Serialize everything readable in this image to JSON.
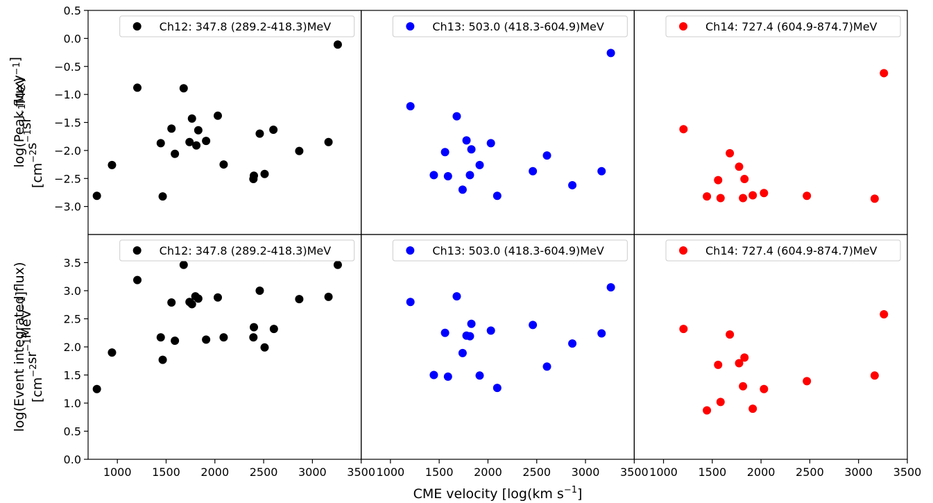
{
  "figure": {
    "xlabel": "CME velocity [log(km s",
    "xlabel_sup": "−1",
    "xlabel_end": "]",
    "ylabels": [
      {
        "line1": "log(Peak flux)",
        "line2": [
          {
            "t": "[cm"
          },
          {
            "t": "−2",
            "sup": true
          },
          {
            "t": "s"
          },
          {
            "t": "−1",
            "sup": true
          },
          {
            "t": "sr"
          },
          {
            "t": "−1",
            "sup": true
          },
          {
            "t": "MeV"
          },
          {
            "t": "−1",
            "sup": true
          },
          {
            "t": "]"
          }
        ]
      },
      {
        "line1": "log(Event integrated flux)",
        "line2": [
          {
            "t": "[cm"
          },
          {
            "t": "−2",
            "sup": true
          },
          {
            "t": "sr"
          },
          {
            "t": "−1",
            "sup": true
          },
          {
            "t": "MeV"
          },
          {
            "t": "−1",
            "sup": true
          },
          {
            "t": "]"
          }
        ]
      }
    ]
  },
  "chart_data": {
    "type": "scatter",
    "grid": false,
    "legend_placement": "top-right",
    "x_range": [
      700,
      3500
    ],
    "x_ticks": [
      1000,
      1500,
      2000,
      2500,
      3000,
      3500
    ],
    "x_tick_labels": [
      "1000",
      "1500",
      "2000",
      "2500",
      "3000",
      "3500"
    ],
    "channels": [
      {
        "name": "Ch12: 347.8 (289.2-418.3)MeV",
        "color": "#000000"
      },
      {
        "name": "Ch13: 503.0 (418.3-604.9)MeV",
        "color": "#0000ff"
      },
      {
        "name": "Ch14: 727.4 (604.9-874.7)MeV",
        "color": "#ff0000"
      }
    ],
    "rows": [
      {
        "metric": "peak_flux",
        "y_range": [
          -3.5,
          0.5
        ],
        "y_ticks": [
          0.5,
          0.0,
          -0.5,
          -1.0,
          -1.5,
          -2.0,
          -2.5,
          -3.0
        ],
        "y_tick_labels": [
          "0.5",
          "0.0",
          "−0.5",
          "−1.0",
          "−1.5",
          "−2.0",
          "−2.5",
          "−3.0"
        ],
        "series": [
          {
            "channel": 0,
            "x": [
              790,
              945,
              1205,
              1445,
              1465,
              1555,
              1590,
              1680,
              1740,
              1765,
              1810,
              1830,
              1910,
              2030,
              2090,
              2395,
              2400,
              2460,
              2510,
              2600,
              2865,
              3165,
              3260
            ],
            "y": [
              -2.81,
              -2.26,
              -0.88,
              -1.87,
              -2.82,
              -1.61,
              -2.06,
              -0.89,
              -1.85,
              -1.43,
              -1.91,
              -1.64,
              -1.83,
              -1.38,
              -2.25,
              -2.51,
              -2.45,
              -1.7,
              -2.42,
              -1.63,
              -2.01,
              -1.85,
              -0.11
            ]
          },
          {
            "channel": 1,
            "x": [
              1205,
              1445,
              1560,
              1590,
              1680,
              1740,
              1780,
              1815,
              1830,
              1915,
              2030,
              2095,
              2460,
              2605,
              2865,
              3165,
              3260
            ],
            "y": [
              -1.21,
              -2.44,
              -2.03,
              -2.46,
              -1.39,
              -2.7,
              -1.82,
              -2.44,
              -1.98,
              -2.26,
              -1.87,
              -2.81,
              -2.37,
              -2.09,
              -2.62,
              -2.37,
              -0.26
            ]
          },
          {
            "channel": 2,
            "x": [
              1205,
              1445,
              1560,
              1585,
              1680,
              1775,
              1815,
              1830,
              1915,
              2030,
              2470,
              3165,
              3260
            ],
            "y": [
              -1.62,
              -2.82,
              -2.53,
              -2.85,
              -2.05,
              -2.29,
              -2.85,
              -2.51,
              -2.8,
              -2.76,
              -2.81,
              -2.86,
              -0.62
            ]
          }
        ]
      },
      {
        "metric": "event_integrated_flux",
        "y_range": [
          0.0,
          4.0
        ],
        "y_ticks": [
          0.0,
          0.5,
          1.0,
          1.5,
          2.0,
          2.5,
          3.0,
          3.5
        ],
        "y_tick_labels": [
          "0.0",
          "0.5",
          "1.0",
          "1.5",
          "2.0",
          "2.5",
          "3.0",
          "3.5"
        ],
        "series": [
          {
            "channel": 0,
            "x": [
              790,
              945,
              1205,
              1445,
              1465,
              1555,
              1590,
              1680,
              1740,
              1765,
              1800,
              1830,
              1910,
              2030,
              2090,
              2395,
              2400,
              2460,
              2510,
              2605,
              2865,
              3165,
              3260
            ],
            "y": [
              1.25,
              1.9,
              3.19,
              2.17,
              1.77,
              2.79,
              2.11,
              3.46,
              2.8,
              2.76,
              2.9,
              2.86,
              2.13,
              2.88,
              2.17,
              2.17,
              2.35,
              3.0,
              1.99,
              2.32,
              2.85,
              2.89,
              3.46
            ]
          },
          {
            "channel": 1,
            "x": [
              1205,
              1445,
              1560,
              1590,
              1680,
              1740,
              1780,
              1815,
              1830,
              1915,
              2030,
              2095,
              2460,
              2605,
              2865,
              3165,
              3260
            ],
            "y": [
              2.8,
              1.5,
              2.25,
              1.47,
              2.9,
              1.89,
              2.2,
              2.19,
              2.41,
              1.49,
              2.29,
              1.27,
              2.39,
              1.65,
              2.06,
              2.24,
              3.06
            ]
          },
          {
            "channel": 2,
            "x": [
              1205,
              1445,
              1560,
              1585,
              1680,
              1775,
              1815,
              1830,
              1915,
              2030,
              2470,
              3165,
              3260
            ],
            "y": [
              2.32,
              0.87,
              1.68,
              1.02,
              2.22,
              1.71,
              1.3,
              1.81,
              0.9,
              1.25,
              1.39,
              1.49,
              2.58
            ]
          }
        ]
      }
    ]
  }
}
